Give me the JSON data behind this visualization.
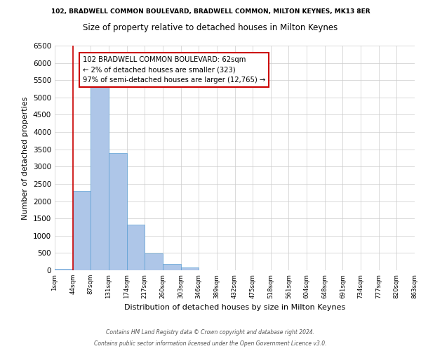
{
  "title_top": "102, BRADWELL COMMON BOULEVARD, BRADWELL COMMON, MILTON KEYNES, MK13 8ER",
  "title_main": "Size of property relative to detached houses in Milton Keynes",
  "xlabel": "Distribution of detached houses by size in Milton Keynes",
  "ylabel": "Number of detached properties",
  "bin_labels": [
    "1sqm",
    "44sqm",
    "87sqm",
    "131sqm",
    "174sqm",
    "217sqm",
    "260sqm",
    "303sqm",
    "346sqm",
    "389sqm",
    "432sqm",
    "475sqm",
    "518sqm",
    "561sqm",
    "604sqm",
    "648sqm",
    "691sqm",
    "734sqm",
    "777sqm",
    "820sqm",
    "863sqm"
  ],
  "bar_values": [
    50,
    2300,
    5450,
    3400,
    1320,
    480,
    185,
    80,
    10,
    0,
    0,
    0,
    0,
    0,
    0,
    0,
    0,
    0,
    0,
    0
  ],
  "bar_color": "#aec6e8",
  "bar_edgecolor": "#5a9fd4",
  "vline_x": 1.0,
  "vline_color": "#cc0000",
  "ylim": [
    0,
    6500
  ],
  "yticks": [
    0,
    500,
    1000,
    1500,
    2000,
    2500,
    3000,
    3500,
    4000,
    4500,
    5000,
    5500,
    6000,
    6500
  ],
  "annotation_title": "102 BRADWELL COMMON BOULEVARD: 62sqm",
  "annotation_line1": "← 2% of detached houses are smaller (323)",
  "annotation_line2": "97% of semi-detached houses are larger (12,765) →",
  "annotation_box_color": "#ffffff",
  "annotation_box_edgecolor": "#cc0000",
  "footer1": "Contains HM Land Registry data © Crown copyright and database right 2024.",
  "footer2": "Contains public sector information licensed under the Open Government Licence v3.0.",
  "bg_color": "#ffffff",
  "grid_color": "#cccccc"
}
